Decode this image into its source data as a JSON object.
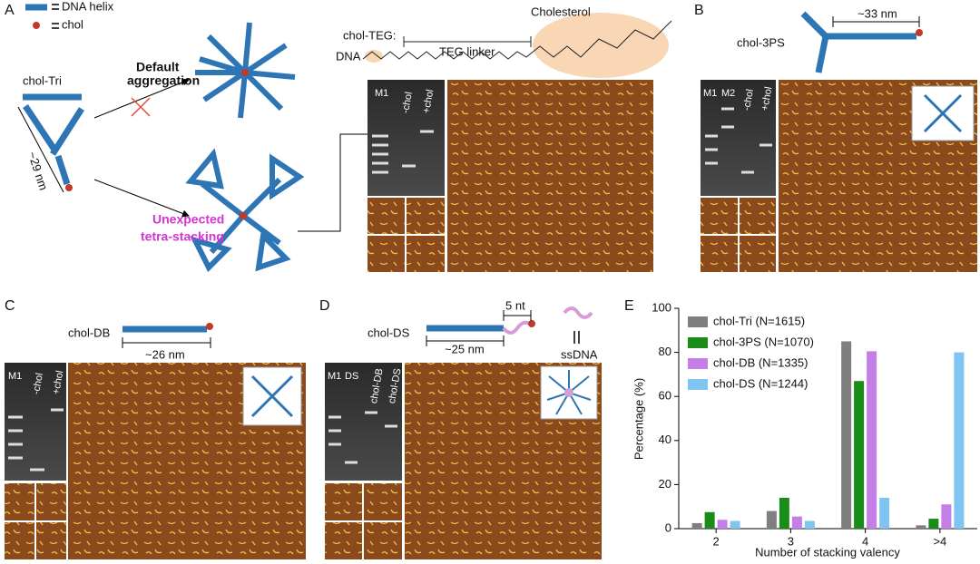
{
  "panel_a": {
    "label": "A",
    "legend": [
      "DNA helix",
      "chol"
    ],
    "structure": "chol-Tri",
    "length": "~29 nm",
    "path_default": [
      "Default",
      "aggregation"
    ],
    "path_unexpected": [
      "Unexpected",
      "tetra-stacking"
    ],
    "teg": {
      "title": "chol-TEG:",
      "linker": "TEG linker",
      "cholesterol": "Cholesterol",
      "dna": "DNA"
    },
    "gel_lanes": [
      "M1",
      "-chol",
      "+chol"
    ]
  },
  "panel_b": {
    "label": "B",
    "structure": "chol-3PS",
    "length": "~33 nm",
    "gel_lanes": [
      "M1",
      "M2",
      "-chol",
      "+chol"
    ]
  },
  "panel_c": {
    "label": "C",
    "structure": "chol-DB",
    "length": "~26 nm",
    "gel_lanes": [
      "M1",
      "-chol",
      "+chol"
    ]
  },
  "panel_d": {
    "label": "D",
    "structure": "chol-DS",
    "length": "~25 nm",
    "overhang": "5 nt",
    "ssdna": "ssDNA",
    "gel_lanes": [
      "M1",
      "DS",
      "chol-DB",
      "chol-DS"
    ]
  },
  "chart_data": {
    "type": "bar",
    "label": "E",
    "ylabel": "Percentage (%)",
    "xlabel": "Number of stacking valency",
    "categories": [
      "2",
      "3",
      "4",
      ">4"
    ],
    "series": [
      {
        "name": "chol-Tri (N=1615)",
        "color": "#7f7f7f",
        "values": [
          2.5,
          8,
          85,
          1.5
        ]
      },
      {
        "name": "chol-3PS (N=1070)",
        "color": "#1a8c1a",
        "values": [
          7.5,
          14,
          67,
          4.5
        ]
      },
      {
        "name": "chol-DB (N=1335)",
        "color": "#c47ee8",
        "values": [
          4,
          5.5,
          80.5,
          11
        ]
      },
      {
        "name": "chol-DS (N=1244)",
        "color": "#80c4f2",
        "values": [
          3.5,
          3.5,
          14,
          80
        ]
      }
    ],
    "ylim": [
      0,
      100
    ],
    "yticks": [
      0,
      20,
      40,
      60,
      80,
      100
    ]
  }
}
